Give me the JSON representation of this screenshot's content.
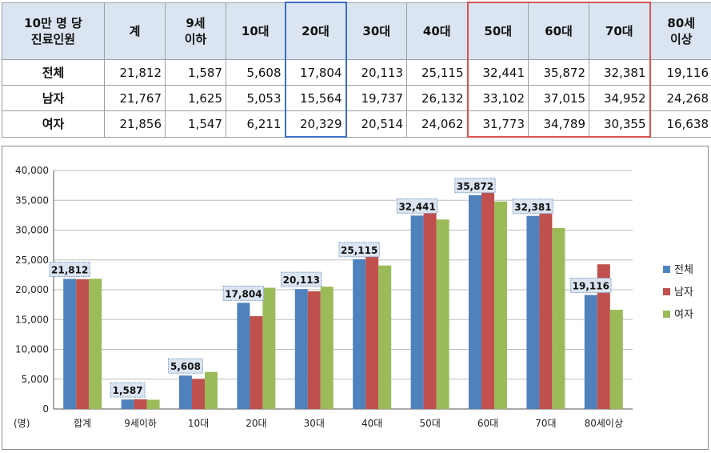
{
  "table": {
    "corner_label": "10만 명 당\n진료인원",
    "headers": [
      "계",
      "9세\n이하",
      "10대",
      "20대",
      "30대",
      "40대",
      "50대",
      "60대",
      "70대",
      "80세\n이상"
    ],
    "rows": [
      {
        "label": "전체",
        "values": [
          "21,812",
          "1,587",
          "5,608",
          "17,804",
          "20,113",
          "25,115",
          "32,441",
          "35,872",
          "32,381",
          "19,116"
        ]
      },
      {
        "label": "남자",
        "values": [
          "21,767",
          "1,625",
          "5,053",
          "15,564",
          "19,737",
          "26,132",
          "33,102",
          "37,015",
          "34,952",
          "24,268"
        ]
      },
      {
        "label": "여자",
        "values": [
          "21,856",
          "1,547",
          "6,211",
          "20,329",
          "20,514",
          "24,062",
          "31,773",
          "34,789",
          "30,355",
          "16,638"
        ]
      }
    ]
  },
  "chart_data": {
    "type": "bar",
    "unit_label": "(명)",
    "categories": [
      "합계",
      "9세이하",
      "10대",
      "20대",
      "30대",
      "40대",
      "50대",
      "60대",
      "70대",
      "80세이상"
    ],
    "series": [
      {
        "name": "전체",
        "color": "#4f81bd",
        "values": [
          21812,
          1587,
          5608,
          17804,
          20113,
          25115,
          32441,
          35872,
          32381,
          19116
        ]
      },
      {
        "name": "남자",
        "color": "#c0504d",
        "values": [
          21767,
          1625,
          5053,
          15564,
          19737,
          26132,
          33102,
          37015,
          34952,
          24268
        ]
      },
      {
        "name": "여자",
        "color": "#9bbb59",
        "values": [
          21856,
          1547,
          6211,
          20329,
          20514,
          24062,
          31773,
          34789,
          30355,
          16638
        ]
      }
    ],
    "data_labels": [
      "21,812",
      "1,587",
      "5,608",
      "17,804",
      "20,113",
      "25,115",
      "32,441",
      "35,872",
      "32,381",
      "19,116"
    ],
    "ylim": [
      0,
      40000
    ],
    "yticks": [
      0,
      5000,
      10000,
      15000,
      20000,
      25000,
      30000,
      35000,
      40000
    ],
    "ytick_labels": [
      "0",
      "5,000",
      "10,000",
      "15,000",
      "20,000",
      "25,000",
      "30,000",
      "35,000",
      "40,000"
    ],
    "grid": true,
    "legend_position": "right"
  }
}
